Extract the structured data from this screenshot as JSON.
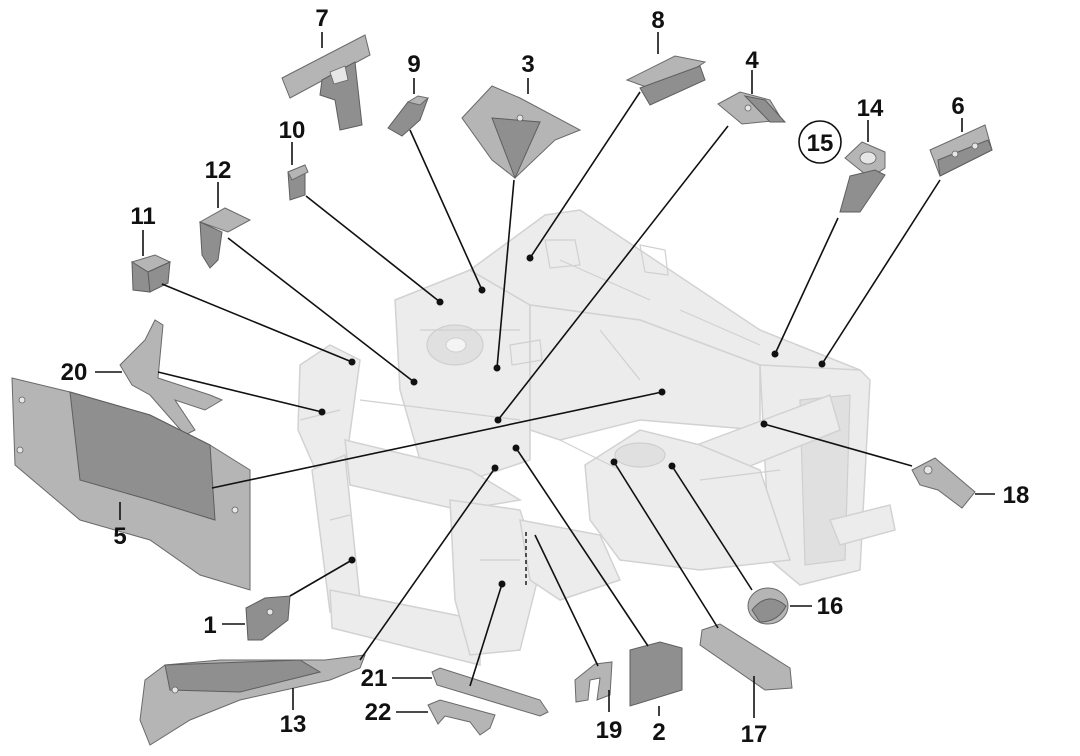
{
  "parts": [
    {
      "id": "1",
      "label": "1"
    },
    {
      "id": "2",
      "label": "2"
    },
    {
      "id": "3",
      "label": "3"
    },
    {
      "id": "4",
      "label": "4"
    },
    {
      "id": "5",
      "label": "5"
    },
    {
      "id": "6",
      "label": "6"
    },
    {
      "id": "7",
      "label": "7"
    },
    {
      "id": "8",
      "label": "8"
    },
    {
      "id": "9",
      "label": "9"
    },
    {
      "id": "10",
      "label": "10"
    },
    {
      "id": "11",
      "label": "11"
    },
    {
      "id": "12",
      "label": "12"
    },
    {
      "id": "13",
      "label": "13"
    },
    {
      "id": "14",
      "label": "14"
    },
    {
      "id": "15",
      "label": "15"
    },
    {
      "id": "16",
      "label": "16"
    },
    {
      "id": "17",
      "label": "17"
    },
    {
      "id": "18",
      "label": "18"
    },
    {
      "id": "19",
      "label": "19"
    },
    {
      "id": "20",
      "label": "20"
    },
    {
      "id": "21",
      "label": "21"
    },
    {
      "id": "22",
      "label": "22"
    }
  ],
  "colors": {
    "frame": "#ececec",
    "part": "#8f8f8f",
    "leader": "#111111"
  }
}
